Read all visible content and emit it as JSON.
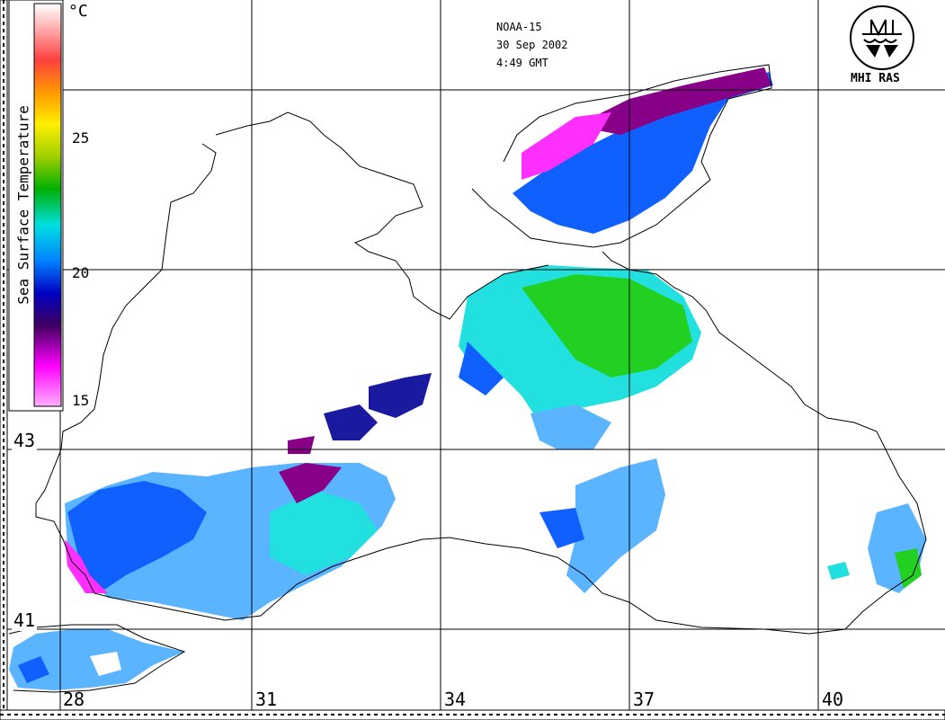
{
  "header": {
    "satellite": "NOAA-15",
    "date": "30 Sep 2002",
    "time": "4:49 GMT"
  },
  "legend": {
    "unit": "°C",
    "title": "Sea Surface Temperature",
    "ticks": [
      "25",
      "20",
      "15"
    ]
  },
  "logo": {
    "icon": "mhi-logo-icon",
    "text": "MHI RAS"
  },
  "grid": {
    "latitude_labels": [
      "43",
      "41"
    ],
    "longitude_labels": [
      "28",
      "31",
      "34",
      "37",
      "40"
    ]
  },
  "colors": {
    "warm_green": "#22d022",
    "cyan": "#22e0e0",
    "light_blue": "#5ab4ff",
    "blue": "#1060ff",
    "dark_blue": "#1a1aa0",
    "purple": "#880088",
    "magenta": "#ff30ff"
  }
}
